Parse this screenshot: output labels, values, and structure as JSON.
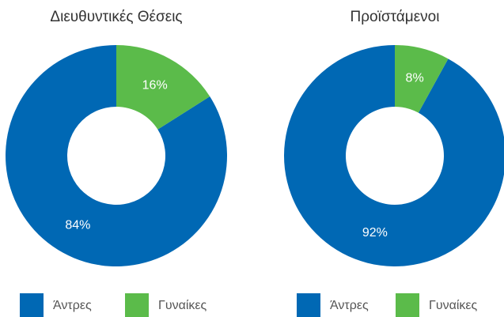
{
  "chart_data": [
    {
      "type": "donut",
      "title": "Διευθυντικές Θέσεις",
      "categories": [
        "Άντρες",
        "Γυναίκες"
      ],
      "values": [
        84,
        16
      ],
      "value_labels": [
        "84%",
        "16%"
      ],
      "colors": [
        "#0068b4",
        "#5bbb4a"
      ]
    },
    {
      "type": "donut",
      "title": "Προϊστάμενοι",
      "categories": [
        "Άντρες",
        "Γυναίκες"
      ],
      "values": [
        92,
        8
      ],
      "value_labels": [
        "92%",
        "8%"
      ],
      "colors": [
        "#0068b4",
        "#5bbb4a"
      ]
    }
  ]
}
